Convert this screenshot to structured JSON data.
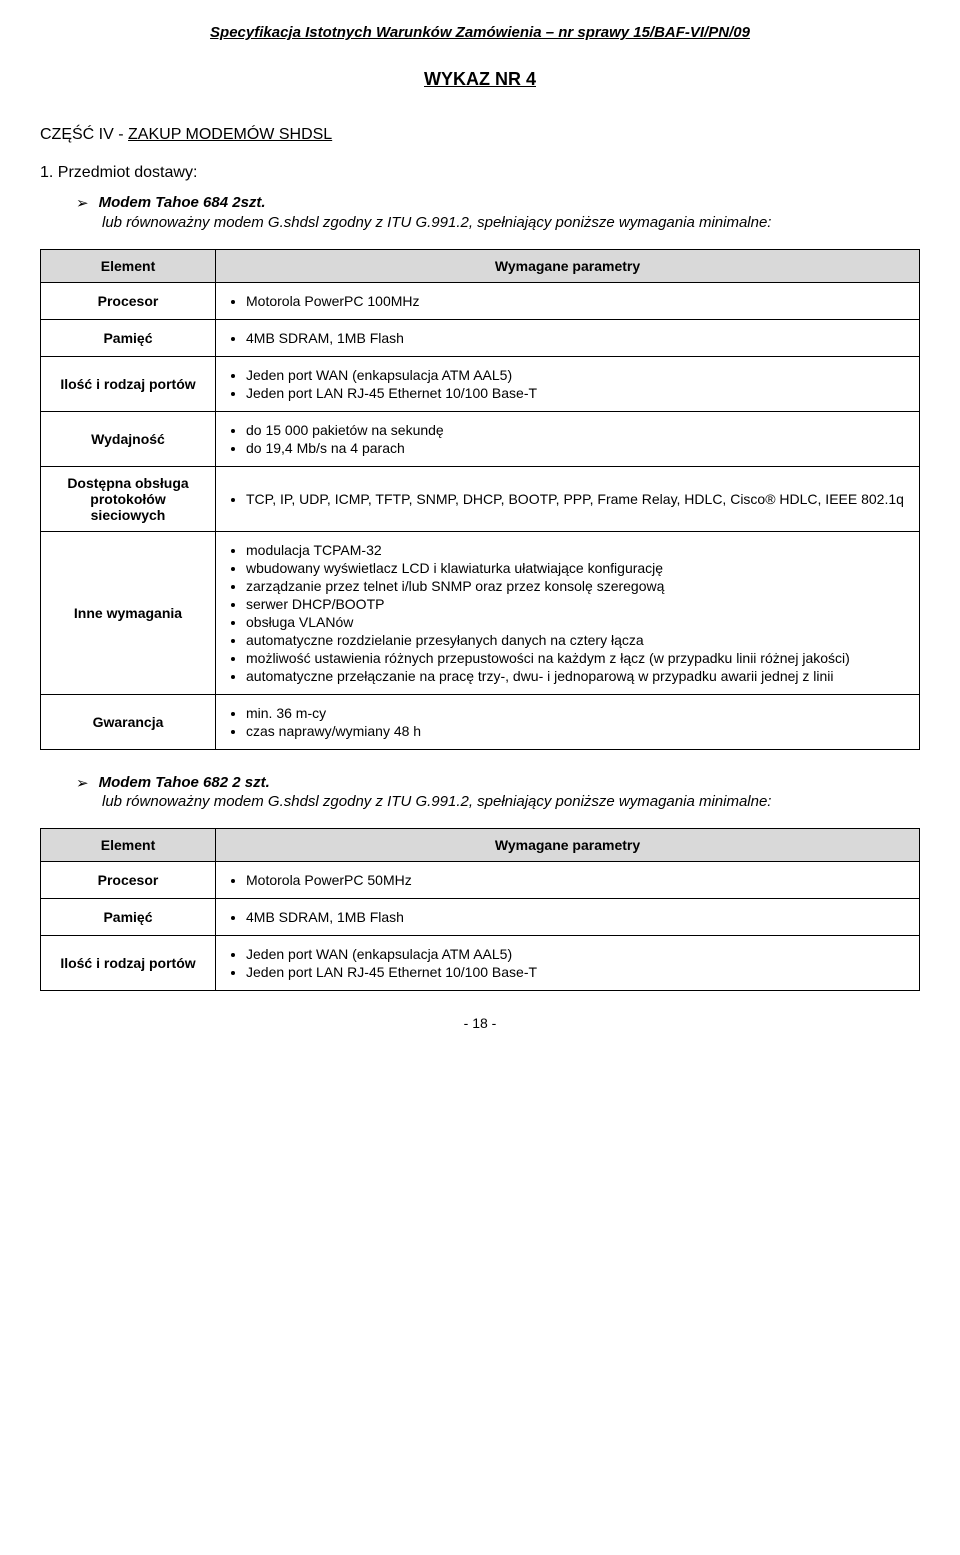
{
  "header": "Specyfikacja Istotnych Warunków Zamówienia – nr sprawy 15/BAF-VI/PN/09",
  "page_title": "WYKAZ NR 4",
  "section_heading_part": "CZĘŚĆ IV - ",
  "section_heading_zakup": "ZAKUP MODEMÓW SHDSL",
  "numbered_1": "1. Przedmiot dostawy:",
  "product1": {
    "marker": "➢",
    "name": "Modem Tahoe 684 2szt.",
    "note": "lub równoważny  modem G.shdsl zgodny z ITU G.991.2, spełniający poniższe wymagania minimalne:",
    "table": {
      "header_left": "Element",
      "header_right": "Wymagane parametry",
      "rows": [
        {
          "label": "Procesor",
          "items": [
            "Motorola PowerPC 100MHz"
          ]
        },
        {
          "label": "Pamięć",
          "items": [
            "4MB SDRAM, 1MB Flash"
          ]
        },
        {
          "label": "Ilość i rodzaj portów",
          "items": [
            "Jeden port WAN (enkapsulacja ATM AAL5)",
            "Jeden port LAN RJ-45 Ethernet 10/100 Base-T"
          ]
        },
        {
          "label": "Wydajność",
          "items": [
            "do 15 000 pakietów na sekundę",
            "do 19,4 Mb/s na 4 parach"
          ]
        },
        {
          "label": "Dostępna obsługa protokołów sieciowych",
          "items": [
            "TCP, IP, UDP, ICMP, TFTP, SNMP, DHCP, BOOTP, PPP, Frame Relay, HDLC, Cisco® HDLC, IEEE 802.1q"
          ]
        },
        {
          "label": "Inne wymagania",
          "items": [
            "modulacja TCPAM-32",
            "wbudowany wyświetlacz LCD i klawiaturka ułatwiające konfigurację",
            "zarządzanie przez telnet i/lub SNMP oraz przez konsolę szeregową",
            "serwer DHCP/BOOTP",
            "obsługa VLANów",
            "automatyczne rozdzielanie przesyłanych danych na cztery łącza",
            "możliwość ustawienia różnych przepustowości na każdym z łącz (w przypadku linii różnej jakości)",
            "automatyczne przełączanie na pracę trzy-, dwu- i jednoparową w przypadku awarii jednej z linii"
          ]
        },
        {
          "label": "Gwarancja",
          "items": [
            "min. 36 m-cy",
            "czas naprawy/wymiany 48 h"
          ]
        }
      ]
    }
  },
  "product2": {
    "marker": "➢",
    "name": "Modem Tahoe 682 2 szt.",
    "note": "lub równoważny modem G.shdsl zgodny z ITU G.991.2, spełniający poniższe wymagania minimalne:",
    "table": {
      "header_left": "Element",
      "header_right": "Wymagane parametry",
      "rows": [
        {
          "label": "Procesor",
          "items": [
            "Motorola PowerPC 50MHz"
          ]
        },
        {
          "label": "Pamięć",
          "items": [
            "4MB SDRAM, 1MB Flash"
          ]
        },
        {
          "label": "Ilość i rodzaj portów",
          "items": [
            "Jeden port WAN (enkapsulacja ATM AAL5)",
            "Jeden port LAN RJ-45 Ethernet 10/100 Base-T"
          ]
        }
      ]
    }
  },
  "footer": "- 18 -",
  "colors": {
    "header_bg": "#d9d9d9",
    "border": "#000000",
    "text": "#000000",
    "background": "#ffffff"
  }
}
